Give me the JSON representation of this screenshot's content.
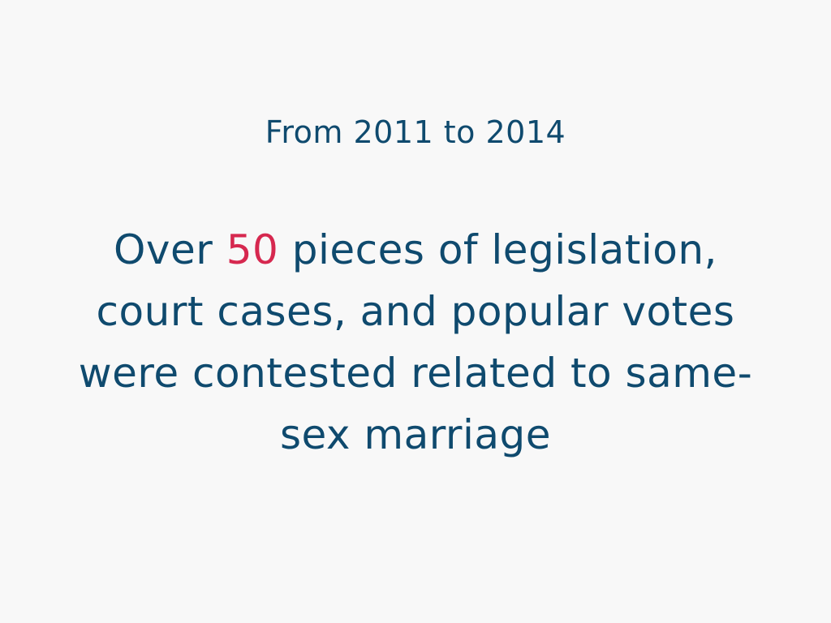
{
  "slide": {
    "subtitle": "From 2011 to 2014",
    "statement_prefix": "Over ",
    "statement_highlight": "50",
    "statement_line1_rest": " pieces of legislation,",
    "statement_line2": "court cases, and popular votes",
    "statement_line3": "were contested related to same-",
    "statement_line4": "sex marriage"
  },
  "colors": {
    "background": "#f8f8f8",
    "text": "#0f4a6e",
    "highlight": "#d6284f"
  }
}
